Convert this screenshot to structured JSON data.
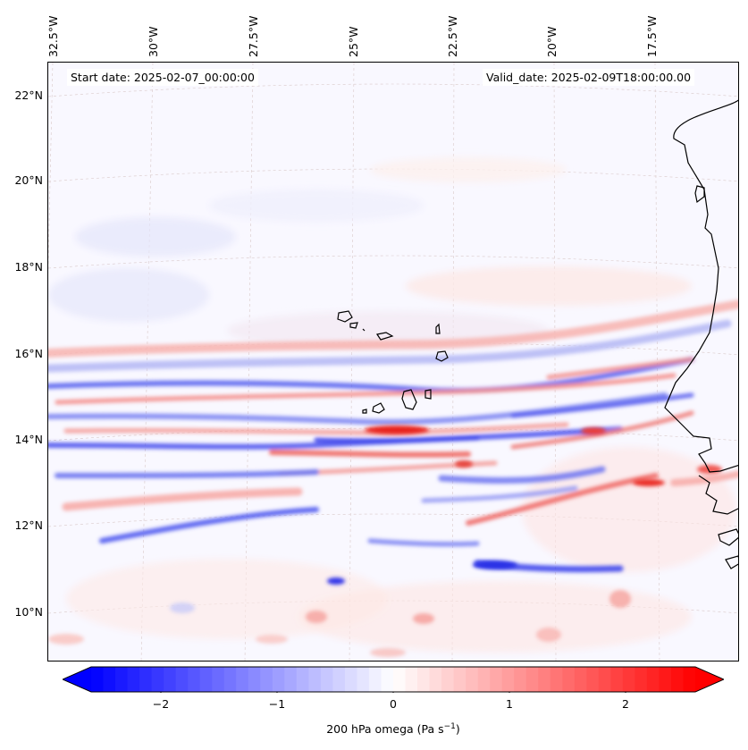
{
  "map": {
    "start_date_label": "Start date: 2025-02-07_00:00:00",
    "valid_date_label": "Valid_date: 2025-02-09T18:00:00.00",
    "longitude_labels": [
      "32.5°W",
      "30°W",
      "27.5°W",
      "25°W",
      "22.5°W",
      "20°W",
      "17.5°W"
    ],
    "latitude_labels": [
      "22°N",
      "20°N",
      "18°N",
      "16°N",
      "14°N",
      "12°N",
      "10°N"
    ],
    "background_color": "#f9f8ff",
    "coastline_color": "#000000",
    "gridline_color": "#d9c9c9"
  },
  "colorbar": {
    "ticks": [
      "−2",
      "−1",
      "0",
      "1",
      "2"
    ],
    "label_main": "200 hPa omega (Pa s",
    "label_sup": "−1",
    "label_end": ")",
    "range": [
      -2.6,
      2.6
    ],
    "levels": 50,
    "negative_color": "#0000ff",
    "positive_color": "#ff0000"
  },
  "chart_data": {
    "type": "heatmap",
    "title": "",
    "variable": "200 hPa omega (Pa s^-1)",
    "colormap": "bwr",
    "vmin": -2.6,
    "vmax": 2.6,
    "extend": "both",
    "lon_range": [
      "33°W",
      "15.5°W"
    ],
    "lat_range": [
      "8.9°N",
      "22.8°N"
    ]
  }
}
